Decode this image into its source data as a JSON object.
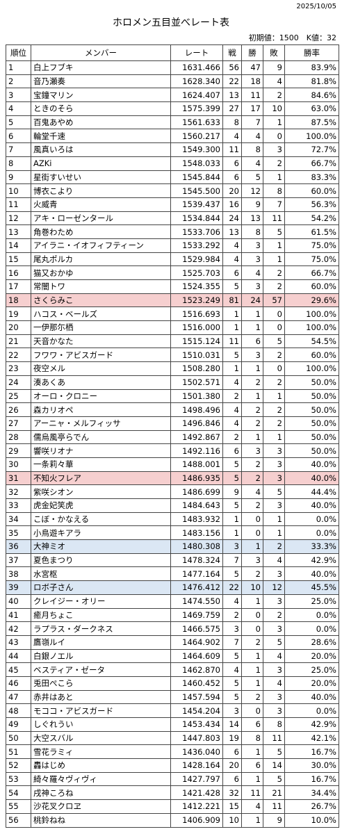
{
  "header": {
    "date": "2025/10/05",
    "title": "ホロメン五目並べレート表",
    "subtitle": "初期値：1500　K値：32"
  },
  "table": {
    "columns": [
      "順位",
      "メンバー",
      "レート",
      "戦",
      "勝",
      "敗",
      "勝率"
    ],
    "rows": [
      {
        "cells": [
          "1",
          "白上フブキ",
          "1631.466",
          "56",
          "47",
          "9",
          "83.9%"
        ]
      },
      {
        "cells": [
          "2",
          "音乃瀬奏",
          "1628.340",
          "22",
          "18",
          "4",
          "81.8%"
        ]
      },
      {
        "cells": [
          "3",
          "宝鐘マリン",
          "1624.407",
          "13",
          "11",
          "2",
          "84.6%"
        ]
      },
      {
        "cells": [
          "4",
          "ときのそら",
          "1575.399",
          "27",
          "17",
          "10",
          "63.0%"
        ]
      },
      {
        "cells": [
          "5",
          "百鬼あやめ",
          "1561.633",
          "8",
          "7",
          "1",
          "87.5%"
        ]
      },
      {
        "cells": [
          "6",
          "輪堂千速",
          "1560.217",
          "4",
          "4",
          "0",
          "100.0%"
        ]
      },
      {
        "cells": [
          "7",
          "風真いろは",
          "1549.300",
          "11",
          "8",
          "3",
          "72.7%"
        ]
      },
      {
        "cells": [
          "8",
          "AZKi",
          "1548.033",
          "6",
          "4",
          "2",
          "66.7%"
        ]
      },
      {
        "cells": [
          "9",
          "星街すいせい",
          "1545.844",
          "6",
          "5",
          "1",
          "83.3%"
        ]
      },
      {
        "cells": [
          "10",
          "博衣こより",
          "1545.500",
          "20",
          "12",
          "8",
          "60.0%"
        ]
      },
      {
        "cells": [
          "11",
          "火威青",
          "1539.437",
          "16",
          "9",
          "7",
          "56.3%"
        ]
      },
      {
        "cells": [
          "12",
          "アキ・ローゼンタール",
          "1534.844",
          "24",
          "13",
          "11",
          "54.2%"
        ]
      },
      {
        "cells": [
          "13",
          "角巻わため",
          "1533.706",
          "13",
          "8",
          "5",
          "61.5%"
        ]
      },
      {
        "cells": [
          "14",
          "アイラニ・イオフィフティーン",
          "1533.292",
          "4",
          "3",
          "1",
          "75.0%"
        ]
      },
      {
        "cells": [
          "15",
          "尾丸ポルカ",
          "1529.984",
          "4",
          "3",
          "1",
          "75.0%"
        ]
      },
      {
        "cells": [
          "16",
          "猫又おかゆ",
          "1525.703",
          "6",
          "4",
          "2",
          "66.7%"
        ]
      },
      {
        "cells": [
          "17",
          "常闇トワ",
          "1524.355",
          "5",
          "3",
          "2",
          "60.0%"
        ]
      },
      {
        "cells": [
          "18",
          "さくらみこ",
          "1523.249",
          "81",
          "24",
          "57",
          "29.6%"
        ],
        "color": "#f6cfcf"
      },
      {
        "cells": [
          "19",
          "ハコス・ベールズ",
          "1516.693",
          "1",
          "1",
          "0",
          "100.0%"
        ]
      },
      {
        "cells": [
          "20",
          "一伊那尓栖",
          "1516.000",
          "1",
          "1",
          "0",
          "100.0%"
        ]
      },
      {
        "cells": [
          "21",
          "天音かなた",
          "1515.124",
          "11",
          "6",
          "5",
          "54.5%"
        ]
      },
      {
        "cells": [
          "22",
          "フワワ・アビスガード",
          "1510.031",
          "5",
          "3",
          "2",
          "60.0%"
        ]
      },
      {
        "cells": [
          "23",
          "夜空メル",
          "1508.280",
          "1",
          "1",
          "0",
          "100.0%"
        ]
      },
      {
        "cells": [
          "24",
          "湊あくあ",
          "1502.571",
          "4",
          "2",
          "2",
          "50.0%"
        ]
      },
      {
        "cells": [
          "25",
          "オーロ・クロニー",
          "1501.380",
          "2",
          "1",
          "1",
          "50.0%"
        ]
      },
      {
        "cells": [
          "26",
          "森カリオペ",
          "1498.496",
          "4",
          "2",
          "2",
          "50.0%"
        ]
      },
      {
        "cells": [
          "27",
          "アーニャ・メルフィッサ",
          "1496.846",
          "4",
          "2",
          "2",
          "50.0%"
        ]
      },
      {
        "cells": [
          "28",
          "儒烏風亭らでん",
          "1492.867",
          "2",
          "1",
          "1",
          "50.0%"
        ]
      },
      {
        "cells": [
          "29",
          "響咲リオナ",
          "1492.116",
          "6",
          "3",
          "3",
          "50.0%"
        ]
      },
      {
        "cells": [
          "30",
          "一条莉々華",
          "1488.001",
          "5",
          "2",
          "3",
          "40.0%"
        ]
      },
      {
        "cells": [
          "31",
          "不知火フレア",
          "1486.935",
          "5",
          "2",
          "3",
          "40.0%"
        ],
        "color": "#f6cfcf"
      },
      {
        "cells": [
          "32",
          "紫咲シオン",
          "1486.699",
          "9",
          "4",
          "5",
          "44.4%"
        ]
      },
      {
        "cells": [
          "33",
          "虎金妃笑虎",
          "1484.643",
          "5",
          "2",
          "3",
          "40.0%"
        ]
      },
      {
        "cells": [
          "34",
          "こぼ・かなえる",
          "1483.932",
          "1",
          "0",
          "1",
          "0.0%"
        ]
      },
      {
        "cells": [
          "35",
          "小鳥遊キアラ",
          "1483.156",
          "1",
          "0",
          "1",
          "0.0%"
        ]
      },
      {
        "cells": [
          "36",
          "大神ミオ",
          "1480.308",
          "3",
          "1",
          "2",
          "33.3%"
        ],
        "color": "#dbe7f4"
      },
      {
        "cells": [
          "37",
          "夏色まつり",
          "1478.324",
          "7",
          "3",
          "4",
          "42.9%"
        ]
      },
      {
        "cells": [
          "38",
          "水宮枢",
          "1477.164",
          "5",
          "2",
          "3",
          "40.0%"
        ]
      },
      {
        "cells": [
          "39",
          "ロボ子さん",
          "1476.412",
          "22",
          "10",
          "12",
          "45.5%"
        ],
        "color": "#dbe7f4"
      },
      {
        "cells": [
          "40",
          "クレイジー・オリー",
          "1474.550",
          "4",
          "1",
          "3",
          "25.0%"
        ]
      },
      {
        "cells": [
          "41",
          "癒月ちょこ",
          "1469.759",
          "2",
          "0",
          "2",
          "0.0%"
        ]
      },
      {
        "cells": [
          "42",
          "ラプラス・ダークネス",
          "1466.575",
          "3",
          "0",
          "3",
          "0.0%"
        ]
      },
      {
        "cells": [
          "43",
          "鷹嶺ルイ",
          "1464.902",
          "7",
          "2",
          "5",
          "28.6%"
        ]
      },
      {
        "cells": [
          "44",
          "白銀ノエル",
          "1464.609",
          "5",
          "1",
          "4",
          "20.0%"
        ]
      },
      {
        "cells": [
          "45",
          "ベスティア・ゼータ",
          "1462.870",
          "4",
          "1",
          "3",
          "25.0%"
        ]
      },
      {
        "cells": [
          "46",
          "兎田ぺこら",
          "1460.452",
          "5",
          "1",
          "4",
          "20.0%"
        ]
      },
      {
        "cells": [
          "47",
          "赤井はあと",
          "1457.594",
          "5",
          "2",
          "3",
          "40.0%"
        ]
      },
      {
        "cells": [
          "48",
          "モココ・アビスガード",
          "1454.204",
          "3",
          "0",
          "3",
          "0.0%"
        ]
      },
      {
        "cells": [
          "49",
          "しぐれうい",
          "1453.434",
          "14",
          "6",
          "8",
          "42.9%"
        ]
      },
      {
        "cells": [
          "50",
          "大空スバル",
          "1447.803",
          "19",
          "8",
          "11",
          "42.1%"
        ]
      },
      {
        "cells": [
          "51",
          "雪花ラミィ",
          "1436.040",
          "6",
          "1",
          "5",
          "16.7%"
        ]
      },
      {
        "cells": [
          "52",
          "轟はじめ",
          "1428.164",
          "20",
          "6",
          "14",
          "30.0%"
        ]
      },
      {
        "cells": [
          "53",
          "綺々羅々ヴィヴィ",
          "1427.797",
          "6",
          "1",
          "5",
          "16.7%"
        ]
      },
      {
        "cells": [
          "54",
          "戌神ころね",
          "1421.428",
          "32",
          "11",
          "21",
          "34.4%"
        ]
      },
      {
        "cells": [
          "55",
          "沙花叉クロヱ",
          "1412.221",
          "15",
          "4",
          "11",
          "26.7%"
        ]
      },
      {
        "cells": [
          "56",
          "桃鈴ねね",
          "1406.909",
          "10",
          "1",
          "9",
          "10.0%"
        ]
      }
    ]
  }
}
